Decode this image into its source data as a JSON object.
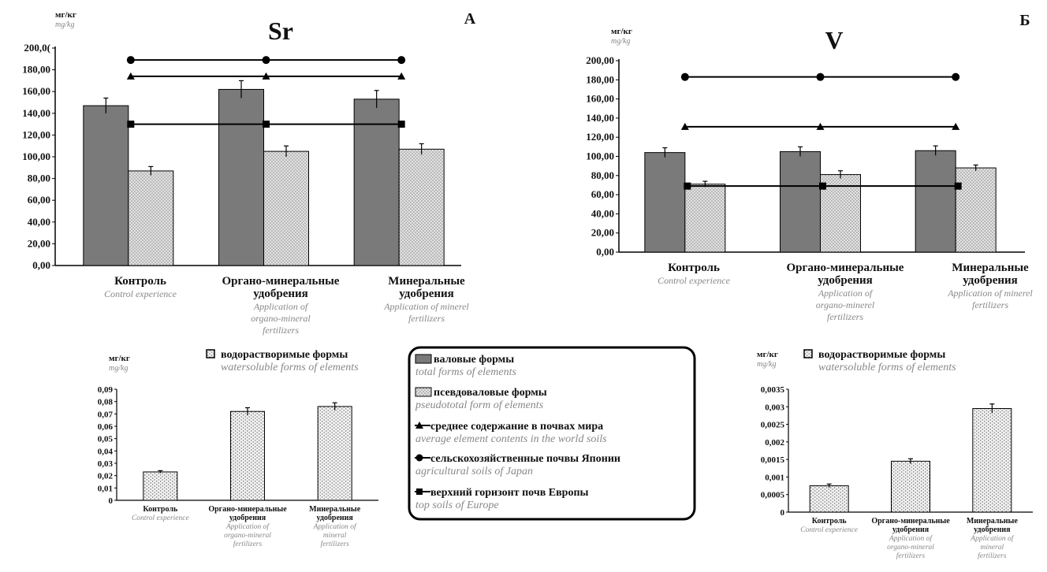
{
  "legend": {
    "total": "валовые формы",
    "total_en": "total forms of elements",
    "pseudo": "псевдоваловые формы",
    "pseudo_en": "pseudototal form of elements",
    "world": "среднее содержание в почвах мира",
    "world_en": "average element contents in the world soils",
    "japan": "сельскохозяйственные почвы Японии",
    "japan_en": "agricultural soils of Japan",
    "europe": "верхний горизонт почв Европы",
    "europe_en": "top soils of Europe"
  },
  "colors": {
    "total": "#7a7a7a",
    "pseudo": "#cfcfcf",
    "line": "#000000"
  },
  "chart_data": [
    {
      "id": "sr-main",
      "type": "bar",
      "title": "Sr",
      "panel_letter": "А",
      "unit": "мг/кг",
      "unit_en": "mg/kg",
      "ylim": [
        0,
        200
      ],
      "yticks": [
        "0,00",
        "20,00",
        "40,00",
        "60,00",
        "80,00",
        "100,00",
        "120,00",
        "140,00",
        "160,00",
        "180,00",
        "200,0("
      ],
      "categories": [
        "Контроль",
        "Органо-минеральные удобрения",
        "Минеральные удобрения"
      ],
      "categories_en": [
        "Control experience",
        "Application of organo-mineral fertilizers",
        "Application of minerel fertilizers"
      ],
      "series": [
        {
          "key": "total",
          "values": [
            147,
            162,
            153
          ],
          "errors": [
            7,
            8,
            8
          ]
        },
        {
          "key": "pseudo",
          "values": [
            87,
            105,
            107
          ],
          "errors": [
            4,
            5,
            5
          ]
        }
      ],
      "reference_lines": [
        {
          "key": "japan",
          "value": 189
        },
        {
          "key": "world",
          "value": 174
        },
        {
          "key": "europe",
          "value": 130
        }
      ]
    },
    {
      "id": "v-main",
      "type": "bar",
      "title": "V",
      "panel_letter": "Б",
      "unit": "мг/кг",
      "unit_en": "mg/kg",
      "ylim": [
        0,
        200
      ],
      "yticks": [
        "0,00",
        "20,00",
        "40,00",
        "60,00",
        "80,00",
        "100,00",
        "120,00",
        "140,00",
        "160,00",
        "180,00",
        "200,00"
      ],
      "categories": [
        "Контроль",
        "Органо-минеральные удобрения",
        "Минеральные удобрения"
      ],
      "categories_en": [
        "Control experience",
        "Application of organo-minerel fertilizers",
        "Application of minerel fertilizers"
      ],
      "series": [
        {
          "key": "total",
          "values": [
            104,
            105,
            106
          ],
          "errors": [
            5,
            5,
            5
          ]
        },
        {
          "key": "pseudo",
          "values": [
            71,
            81,
            88
          ],
          "errors": [
            3,
            4,
            3
          ]
        }
      ],
      "reference_lines": [
        {
          "key": "japan",
          "value": 183
        },
        {
          "key": "world",
          "value": 131
        },
        {
          "key": "europe",
          "value": 69
        }
      ]
    },
    {
      "id": "sr-water",
      "type": "bar",
      "unit": "мг/кг",
      "unit_en": "mg/kg",
      "legend_label": "водорастворимые формы",
      "legend_label_en": "watersoluble forms of elements",
      "ylim": [
        0,
        0.09
      ],
      "yticks": [
        "0",
        "0,01",
        "0,02",
        "0,03",
        "0,04",
        "0,05",
        "0,06",
        "0,07",
        "0,08",
        "0,09"
      ],
      "categories": [
        "Контроль",
        "Органо-минеральные удобрения",
        "Минеральные удобрения"
      ],
      "categories_en": [
        "Control experience",
        "Application of organo-mineral fertilizers",
        "Application of mineral fertilizers"
      ],
      "series": [
        {
          "key": "water",
          "values": [
            0.023,
            0.072,
            0.076
          ],
          "errors": [
            0.001,
            0.003,
            0.003
          ]
        }
      ]
    },
    {
      "id": "v-water",
      "type": "bar",
      "unit": "мг/кг",
      "unit_en": "mg/kg",
      "legend_label": "водорастворимые формы",
      "legend_label_en": "watersoluble forms of elements",
      "ylim": [
        0,
        0.0035
      ],
      "yticks": [
        "0",
        "0,0005",
        "0,001",
        "0,0015",
        "0,002",
        "0,0025",
        "0,003",
        "0,0035"
      ],
      "categories": [
        "Контроль",
        "Органо-минеральные удобрения",
        "Минеральные удобрения"
      ],
      "categories_en": [
        "Control experience",
        "Application of organo-mineral fertilizers",
        "Application of mineral fertilizers"
      ],
      "series": [
        {
          "key": "water",
          "values": [
            0.00075,
            0.00145,
            0.00295
          ],
          "errors": [
            5e-05,
            7e-05,
            0.00013
          ]
        }
      ]
    }
  ]
}
